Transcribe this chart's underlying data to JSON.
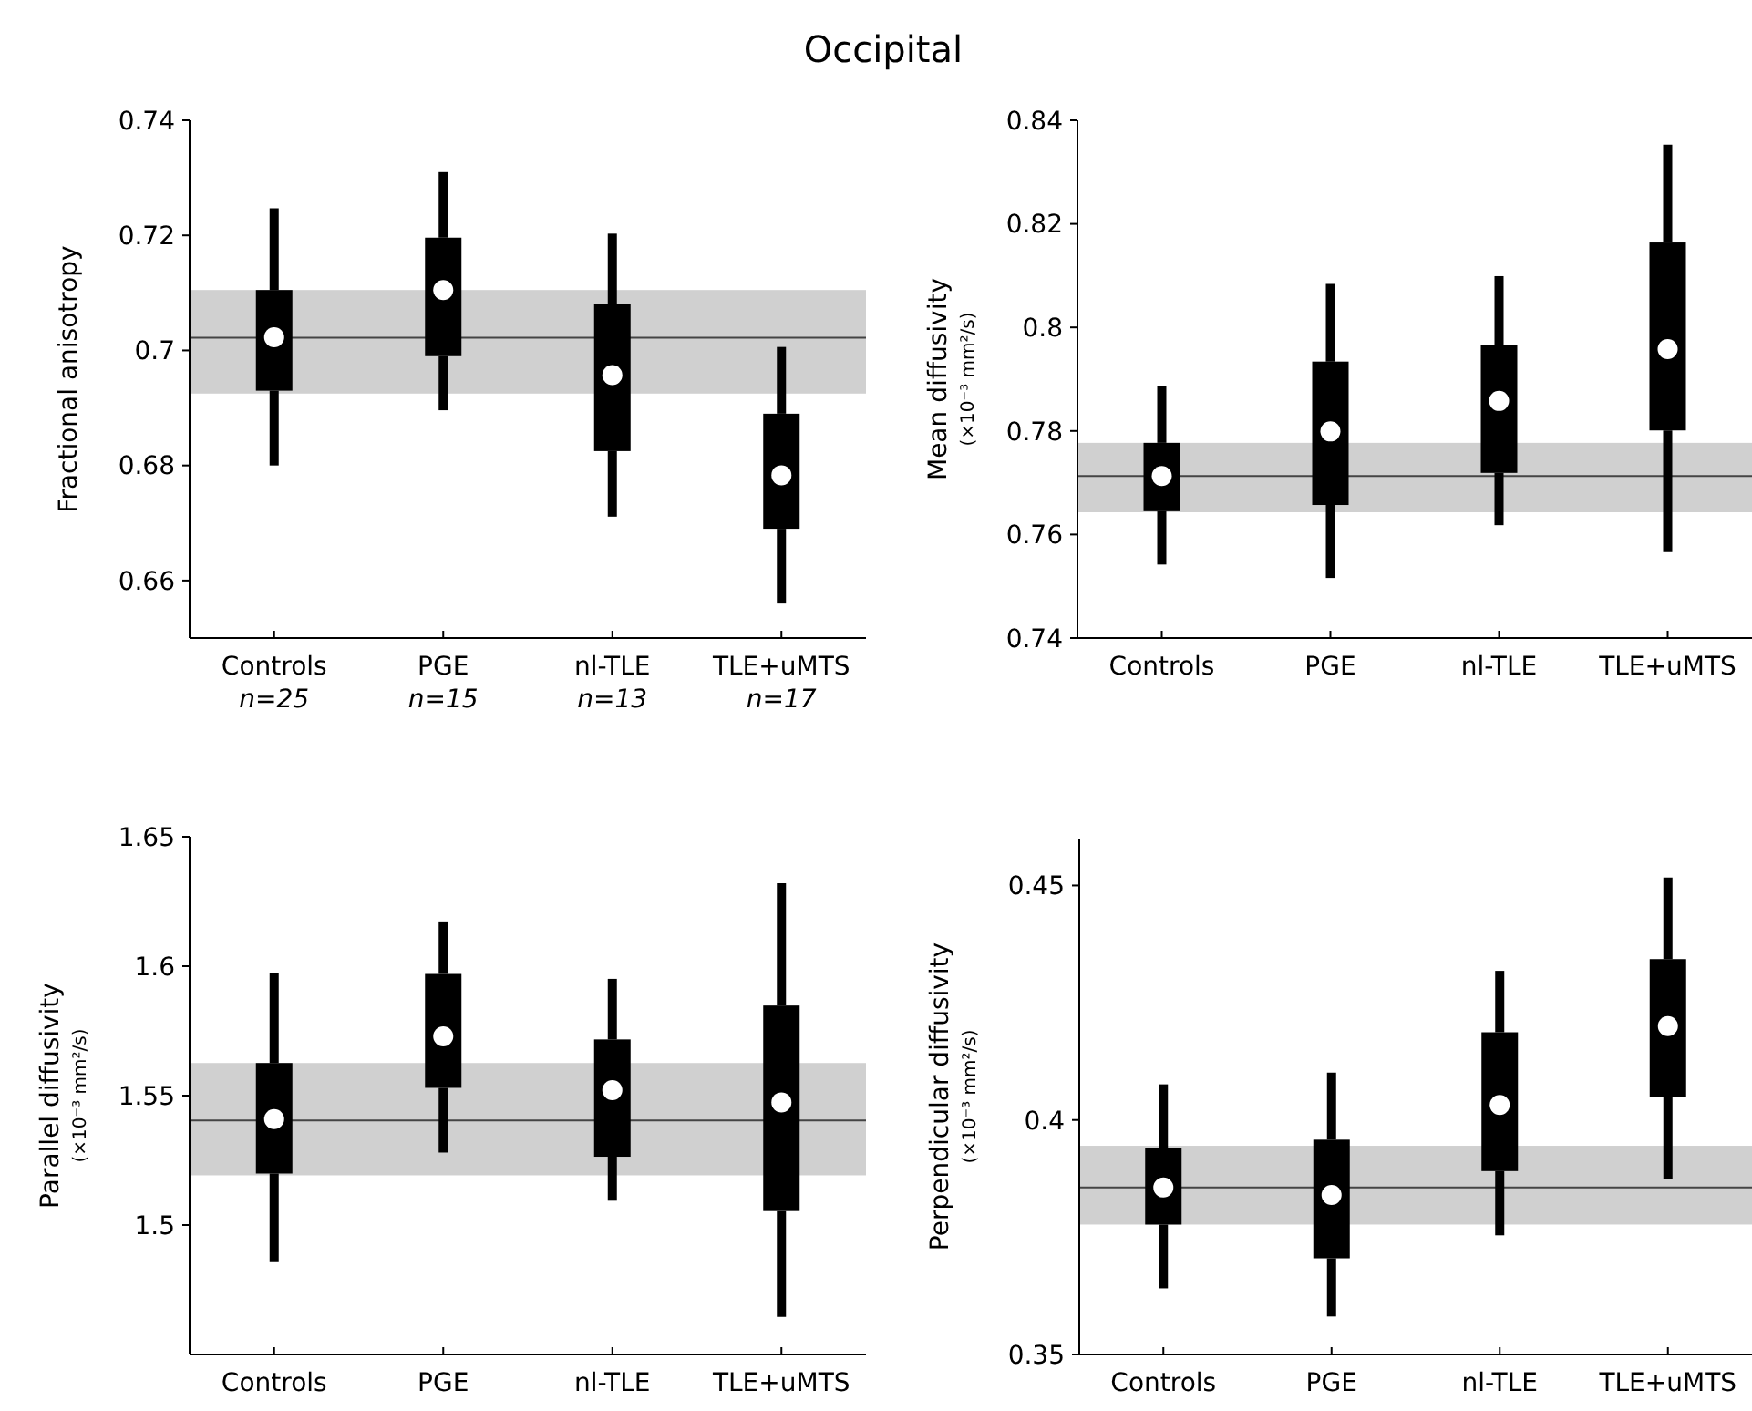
{
  "chart_data": [
    {
      "type": "box",
      "title": "Occipital",
      "ylabel": "Fractional anisotropy",
      "categories": [
        "Controls",
        "PGE",
        "nl-TLE",
        "TLE+uMTS"
      ],
      "ylim": [
        0.65,
        0.74
      ],
      "yticks": [
        0.66,
        0.68,
        0.7,
        0.72,
        0.74
      ],
      "color": "#000000",
      "boxes": [
        {
          "low": 0.68,
          "q1": 0.693,
          "median": 0.7023,
          "q3": 0.7105,
          "high": 0.7247
        },
        {
          "low": 0.6896,
          "q1": 0.699,
          "median": 0.7105,
          "q3": 0.7196,
          "high": 0.731
        },
        {
          "low": 0.6711,
          "q1": 0.6825,
          "median": 0.6957,
          "q3": 0.708,
          "high": 0.7203
        },
        {
          "low": 0.656,
          "q1": 0.669,
          "median": 0.6783,
          "q3": 0.689,
          "high": 0.7006
        }
      ],
      "bands": [
        {
          "axis": "y",
          "from": 0.6925,
          "to": 0.7105,
          "color": "#d0d0d0"
        }
      ],
      "ref_lines": [
        {
          "axis": "y",
          "value": 0.7022,
          "color": "#444444"
        }
      ],
      "annotations": [
        "n=25",
        "n=15",
        "n=13",
        "n=17"
      ]
    },
    {
      "type": "box",
      "ylabel": "Mean diffusivity\n(×10⁻³ mm²/s)",
      "categories": [
        "Controls",
        "PGE",
        "nl-TLE",
        "TLE+uMTS"
      ],
      "ylim": [
        0.74,
        0.84
      ],
      "yticks": [
        0.74,
        0.76,
        0.78,
        0.8,
        0.82,
        0.84
      ],
      "color": "#000000",
      "boxes": [
        {
          "low": 0.7542,
          "q1": 0.7645,
          "median": 0.7713,
          "q3": 0.7777,
          "high": 0.7887
        },
        {
          "low": 0.7516,
          "q1": 0.7657,
          "median": 0.7799,
          "q3": 0.7934,
          "high": 0.8084
        },
        {
          "low": 0.7618,
          "q1": 0.7719,
          "median": 0.7858,
          "q3": 0.7966,
          "high": 0.8099
        },
        {
          "low": 0.7566,
          "q1": 0.7801,
          "median": 0.7958,
          "q3": 0.8164,
          "high": 0.8353
        }
      ],
      "bands": [
        {
          "axis": "y",
          "from": 0.7643,
          "to": 0.7777,
          "color": "#d0d0d0"
        }
      ],
      "ref_lines": [
        {
          "axis": "y",
          "value": 0.7713,
          "color": "#444444"
        }
      ]
    },
    {
      "type": "box",
      "ylabel": "Parallel diffusivity\n(×10⁻³ mm²/s)",
      "categories": [
        "Controls",
        "PGE",
        "nl-TLE",
        "TLE+uMTS"
      ],
      "ylim": [
        1.45,
        1.65
      ],
      "yticks": [
        1.5,
        1.55,
        1.6,
        1.65
      ],
      "color": "#000000",
      "boxes": [
        {
          "low": 1.486,
          "q1": 1.5199,
          "median": 1.5409,
          "q3": 1.5626,
          "high": 1.5974
        },
        {
          "low": 1.528,
          "q1": 1.553,
          "median": 1.5729,
          "q3": 1.597,
          "high": 1.6173
        },
        {
          "low": 1.5094,
          "q1": 1.5264,
          "median": 1.5521,
          "q3": 1.5717,
          "high": 1.5951
        },
        {
          "low": 1.4645,
          "q1": 1.5054,
          "median": 1.5474,
          "q3": 1.5848,
          "high": 1.632
        }
      ],
      "bands": [
        {
          "axis": "y",
          "from": 1.5192,
          "to": 1.5626,
          "color": "#d0d0d0"
        }
      ],
      "ref_lines": [
        {
          "axis": "y",
          "value": 1.5404,
          "color": "#444444"
        }
      ]
    },
    {
      "type": "box",
      "ylabel": "Perpendicular diffusivity\n(×10⁻³ mm²/s)",
      "categories": [
        "Controls",
        "PGE",
        "nl-TLE",
        "TLE+uMTS"
      ],
      "ylim": [
        0.35,
        0.46
      ],
      "yticks": [
        0.35,
        0.4,
        0.45
      ],
      "color": "#000000",
      "boxes": [
        {
          "low": 0.3641,
          "q1": 0.3777,
          "median": 0.3856,
          "q3": 0.3941,
          "high": 0.4076
        },
        {
          "low": 0.3581,
          "q1": 0.3705,
          "median": 0.384,
          "q3": 0.3958,
          "high": 0.4101
        },
        {
          "low": 0.3754,
          "q1": 0.3891,
          "median": 0.4032,
          "q3": 0.4187,
          "high": 0.4318
        },
        {
          "low": 0.3875,
          "q1": 0.405,
          "median": 0.42,
          "q3": 0.4343,
          "high": 0.4517
        }
      ],
      "bands": [
        {
          "axis": "y",
          "from": 0.3777,
          "to": 0.3945,
          "color": "#d0d0d0"
        }
      ],
      "ref_lines": [
        {
          "axis": "y",
          "value": 0.3856,
          "color": "#444444"
        }
      ]
    }
  ]
}
